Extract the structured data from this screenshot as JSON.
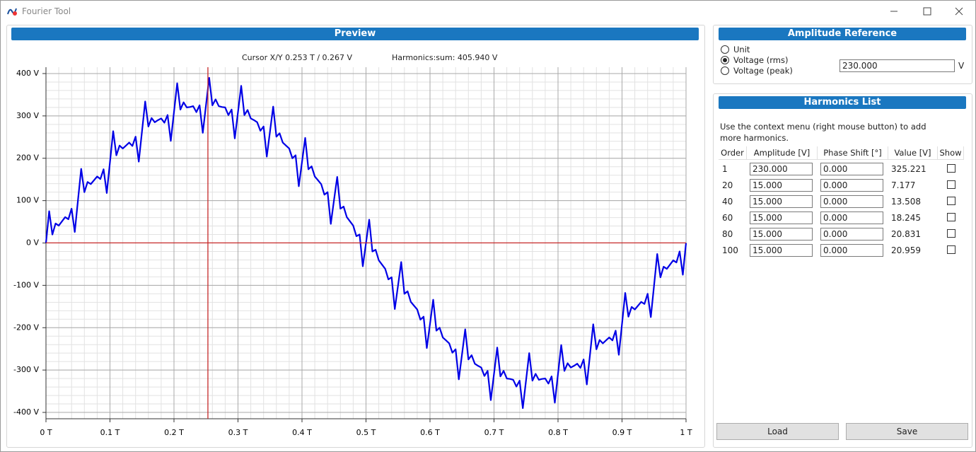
{
  "window": {
    "title": "Fourier Tool"
  },
  "preview": {
    "header": "Preview",
    "cursor_label": "Cursor X/Y 0.253 T / 0.267 V",
    "harmonics_sum_label": "Harmonics:sum: 405.940 V"
  },
  "chart_data": {
    "type": "line",
    "x": [
      0,
      0.005,
      0.01,
      0.015,
      0.02,
      0.025,
      0.03,
      0.035,
      0.04,
      0.045,
      0.05,
      0.055,
      0.06,
      0.065,
      0.07,
      0.075,
      0.08,
      0.085,
      0.09,
      0.095,
      0.1,
      0.105,
      0.11,
      0.115,
      0.12,
      0.125,
      0.13,
      0.135,
      0.14,
      0.145,
      0.15,
      0.155,
      0.16,
      0.165,
      0.17,
      0.175,
      0.18,
      0.185,
      0.19,
      0.195,
      0.2,
      0.205,
      0.21,
      0.215,
      0.22,
      0.225,
      0.23,
      0.235,
      0.24,
      0.245,
      0.25,
      0.255,
      0.26,
      0.265,
      0.27,
      0.275,
      0.28,
      0.285,
      0.29,
      0.295,
      0.3,
      0.305,
      0.31,
      0.315,
      0.32,
      0.325,
      0.33,
      0.335,
      0.34,
      0.345,
      0.35,
      0.355,
      0.36,
      0.365,
      0.37,
      0.375,
      0.38,
      0.385,
      0.39,
      0.395,
      0.4,
      0.405,
      0.41,
      0.415,
      0.42,
      0.425,
      0.43,
      0.435,
      0.44,
      0.445,
      0.45,
      0.455,
      0.46,
      0.465,
      0.47,
      0.475,
      0.48,
      0.485,
      0.49,
      0.495,
      0.5,
      0.505,
      0.51,
      0.515,
      0.52,
      0.525,
      0.53,
      0.535,
      0.54,
      0.545,
      0.55,
      0.555,
      0.56,
      0.565,
      0.57,
      0.575,
      0.58,
      0.585,
      0.59,
      0.595,
      0.6,
      0.605,
      0.61,
      0.615,
      0.62,
      0.625,
      0.63,
      0.635,
      0.64,
      0.645,
      0.65,
      0.655,
      0.66,
      0.665,
      0.67,
      0.675,
      0.68,
      0.685,
      0.69,
      0.695,
      0.7,
      0.705,
      0.71,
      0.715,
      0.72,
      0.725,
      0.73,
      0.735,
      0.74,
      0.745,
      0.75,
      0.755,
      0.76,
      0.765,
      0.77,
      0.775,
      0.78,
      0.785,
      0.79,
      0.795,
      0.8,
      0.805,
      0.81,
      0.815,
      0.82,
      0.825,
      0.83,
      0.835,
      0.84,
      0.845,
      0.85,
      0.855,
      0.86,
      0.865,
      0.87,
      0.875,
      0.88,
      0.885,
      0.89,
      0.895,
      0.9,
      0.905,
      0.91,
      0.915,
      0.92,
      0.925,
      0.93,
      0.935,
      0.94,
      0.945,
      0.95,
      0.955,
      0.96,
      0.965,
      0.97,
      0.975,
      0.98,
      0.985,
      0.99,
      0.995,
      1
    ],
    "values": [
      0,
      75,
      20,
      46,
      41,
      51,
      61,
      56,
      81,
      26,
      101,
      175,
      120,
      144,
      139,
      148,
      157,
      151,
      174,
      118,
      191,
      264,
      207,
      230,
      223,
      230,
      237,
      229,
      251,
      192,
      263,
      334,
      275,
      295,
      285,
      290,
      294,
      284,
      302,
      241,
      309,
      377,
      315,
      332,
      320,
      321,
      323,
      309,
      325,
      260,
      325,
      390,
      325,
      339,
      323,
      321,
      320,
      302,
      315,
      247,
      309,
      371,
      302,
      314,
      294,
      290,
      285,
      265,
      275,
      204,
      263,
      322,
      251,
      259,
      237,
      230,
      223,
      200,
      207,
      134,
      191,
      248,
      174,
      181,
      157,
      148,
      139,
      114,
      120,
      45,
      101,
      156,
      81,
      86,
      61,
      51,
      41,
      16,
      20,
      -55,
      0,
      55,
      -20,
      -16,
      -41,
      -51,
      -61,
      -86,
      -81,
      -156,
      -101,
      -45,
      -120,
      -114,
      -139,
      -148,
      -157,
      -181,
      -174,
      -248,
      -191,
      -134,
      -207,
      -200,
      -223,
      -230,
      -237,
      -259,
      -251,
      -322,
      -263,
      -204,
      -275,
      -265,
      -285,
      -290,
      -294,
      -314,
      -302,
      -371,
      -309,
      -247,
      -315,
      -302,
      -320,
      -321,
      -323,
      -339,
      -325,
      -390,
      -325,
      -260,
      -325,
      -309,
      -323,
      -321,
      -320,
      -332,
      -315,
      -377,
      -309,
      -241,
      -302,
      -284,
      -294,
      -290,
      -285,
      -295,
      -275,
      -334,
      -263,
      -192,
      -251,
      -229,
      -237,
      -230,
      -223,
      -230,
      -207,
      -264,
      -191,
      -118,
      -174,
      -151,
      -157,
      -148,
      -139,
      -144,
      -120,
      -175,
      -101,
      -26,
      -81,
      -56,
      -61,
      -51,
      -41,
      -46,
      -20,
      -75,
      0
    ],
    "color": "#0000e6",
    "xlim": [
      0,
      1
    ],
    "ylim": [
      -415,
      415
    ],
    "xticks": [
      {
        "value": 0,
        "label": "0 T"
      },
      {
        "value": 0.1,
        "label": "0.1 T"
      },
      {
        "value": 0.2,
        "label": "0.2 T"
      },
      {
        "value": 0.3,
        "label": "0.3 T"
      },
      {
        "value": 0.4,
        "label": "0.4 T"
      },
      {
        "value": 0.5,
        "label": "0.5 T"
      },
      {
        "value": 0.6,
        "label": "0.6 T"
      },
      {
        "value": 0.7,
        "label": "0.7 T"
      },
      {
        "value": 0.8,
        "label": "0.8 T"
      },
      {
        "value": 0.9,
        "label": "0.9 T"
      },
      {
        "value": 1,
        "label": "1 T"
      }
    ],
    "yticks": [
      {
        "value": -400,
        "label": "-400 V"
      },
      {
        "value": -300,
        "label": "-300 V"
      },
      {
        "value": -200,
        "label": "-200 V"
      },
      {
        "value": -100,
        "label": "-100 V"
      },
      {
        "value": 0,
        "label": "0 V"
      },
      {
        "value": 100,
        "label": "100 V"
      },
      {
        "value": 200,
        "label": "200 V"
      },
      {
        "value": 300,
        "label": "300 V"
      },
      {
        "value": 400,
        "label": "400 V"
      }
    ],
    "xminor": [
      0,
      0.02,
      0.04,
      0.06,
      0.08,
      0.1,
      0.12,
      0.14,
      0.16,
      0.18,
      0.2,
      0.22,
      0.24,
      0.26,
      0.28,
      0.3,
      0.32,
      0.34,
      0.36,
      0.38,
      0.4,
      0.42,
      0.44,
      0.46,
      0.48,
      0.5,
      0.52,
      0.54,
      0.56,
      0.58,
      0.6,
      0.62,
      0.64,
      0.66,
      0.68,
      0.7,
      0.72,
      0.74,
      0.76,
      0.78,
      0.8,
      0.82,
      0.84,
      0.86,
      0.88,
      0.9,
      0.92,
      0.94,
      0.96,
      0.98,
      1
    ],
    "yminor": [
      -400,
      -380,
      -360,
      -340,
      -320,
      -300,
      -280,
      -260,
      -240,
      -220,
      -200,
      -180,
      -160,
      -140,
      -120,
      -100,
      -80,
      -60,
      -40,
      -20,
      0,
      20,
      40,
      60,
      80,
      100,
      120,
      140,
      160,
      180,
      200,
      220,
      240,
      260,
      280,
      300,
      320,
      340,
      360,
      380,
      400
    ],
    "grid": true,
    "cursor": {
      "x": 0.253,
      "y": 0.267,
      "color": "#c62828"
    }
  },
  "amplitude_reference": {
    "header": "Amplitude Reference",
    "options": [
      "Unit",
      "Voltage (rms)",
      "Voltage (peak)"
    ],
    "selected": 1,
    "value": "230.000",
    "unit": "V"
  },
  "harmonics_list": {
    "header": "Harmonics List",
    "hint": [
      "Use the context menu (right mouse button) to add",
      "more harmonics."
    ],
    "columns": [
      "Order",
      "Amplitude [V]",
      "Phase Shift [°]",
      "Value [V]",
      "Show"
    ],
    "rows": [
      [
        "1",
        "230.000",
        "0.000",
        "325.221",
        false
      ],
      [
        "20",
        "15.000",
        "0.000",
        "7.177",
        false
      ],
      [
        "40",
        "15.000",
        "0.000",
        "13.508",
        false
      ],
      [
        "60",
        "15.000",
        "0.000",
        "18.245",
        false
      ],
      [
        "80",
        "15.000",
        "0.000",
        "20.831",
        false
      ],
      [
        "100",
        "15.000",
        "0.000",
        "20.959",
        false
      ]
    ]
  },
  "buttons": [
    "Load",
    "Save"
  ]
}
